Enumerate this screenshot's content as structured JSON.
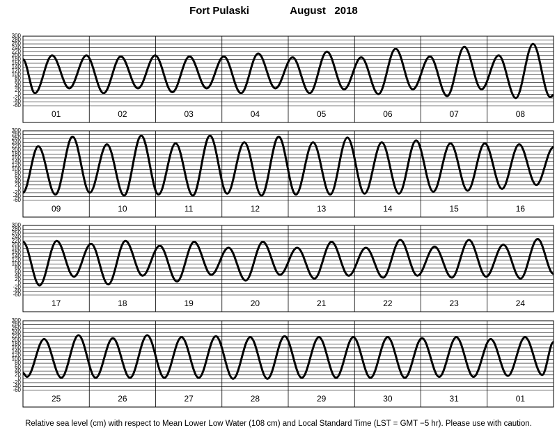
{
  "header": {
    "station": "Fort Pulaski",
    "period": "August   2018"
  },
  "footer": "Relative sea level (cm) with respect to Mean Lower Low Water (108 cm) and Local Standard Time (LST = GMT −5 hr). Please use with caution.",
  "chart_data": [
    {
      "type": "line",
      "xlim": [
        0,
        8
      ],
      "ylim": [
        -60,
        300
      ],
      "grid": true,
      "yticks": [
        300,
        280,
        260,
        240,
        220,
        200,
        180,
        160,
        140,
        120,
        100,
        80,
        60,
        40,
        20,
        0,
        -20,
        -40,
        -60
      ],
      "xticks": [
        {
          "value": 0.5,
          "label": "01"
        },
        {
          "value": 1.5,
          "label": "02"
        },
        {
          "value": 2.5,
          "label": "03"
        },
        {
          "value": 3.5,
          "label": "04"
        },
        {
          "value": 4.5,
          "label": "05"
        },
        {
          "value": 5.5,
          "label": "06"
        },
        {
          "value": 6.5,
          "label": "07"
        },
        {
          "value": 7.5,
          "label": "08"
        }
      ],
      "x": [
        0,
        0.18,
        0.439,
        0.698,
        0.957,
        1.216,
        1.475,
        1.734,
        1.993,
        2.252,
        2.511,
        2.77,
        3.029,
        3.288,
        3.547,
        3.806,
        4.065,
        4.324,
        4.583,
        4.842,
        5.101,
        5.36,
        5.619,
        5.878,
        6.137,
        6.396,
        6.655,
        6.914,
        7.173,
        7.432,
        7.691,
        7.95,
        8
      ],
      "series": [
        {
          "color": "#000000",
          "values": [
            180,
            5,
            200,
            30,
            200,
            5,
            195,
            30,
            200,
            10,
            195,
            30,
            195,
            5,
            210,
            30,
            190,
            5,
            220,
            25,
            190,
            0,
            235,
            25,
            195,
            -10,
            245,
            25,
            200,
            -20,
            260,
            -15,
            -5
          ]
        }
      ]
    },
    {
      "type": "line",
      "xlim": [
        0,
        8
      ],
      "ylim": [
        -60,
        300
      ],
      "grid": true,
      "yticks": [
        300,
        280,
        260,
        240,
        220,
        200,
        180,
        160,
        140,
        120,
        100,
        80,
        60,
        40,
        20,
        0,
        -20,
        -40,
        -60
      ],
      "xticks": [
        {
          "value": 0.5,
          "label": "09"
        },
        {
          "value": 1.5,
          "label": "10"
        },
        {
          "value": 2.5,
          "label": "11"
        },
        {
          "value": 3.5,
          "label": "12"
        },
        {
          "value": 4.5,
          "label": "13"
        },
        {
          "value": 5.5,
          "label": "14"
        },
        {
          "value": 6.5,
          "label": "15"
        },
        {
          "value": 7.5,
          "label": "16"
        }
      ],
      "x": [
        0,
        0.23,
        0.489,
        0.748,
        1.007,
        1.266,
        1.525,
        1.784,
        2.043,
        2.302,
        2.561,
        2.82,
        3.079,
        3.338,
        3.597,
        3.856,
        4.115,
        4.374,
        4.633,
        4.892,
        5.151,
        5.41,
        5.669,
        5.928,
        6.187,
        6.446,
        6.705,
        6.964,
        7.223,
        7.482,
        7.741,
        8
      ],
      "series": [
        {
          "color": "#000000",
          "values": [
            -20,
            220,
            -30,
            270,
            -20,
            230,
            -35,
            275,
            -30,
            235,
            -35,
            275,
            -25,
            240,
            -35,
            270,
            -30,
            240,
            -30,
            265,
            -25,
            240,
            -25,
            250,
            -15,
            235,
            -10,
            235,
            0,
            230,
            20,
            215
          ]
        }
      ]
    },
    {
      "type": "line",
      "xlim": [
        0,
        8
      ],
      "ylim": [
        -60,
        300
      ],
      "grid": true,
      "yticks": [
        300,
        280,
        260,
        240,
        220,
        200,
        180,
        160,
        140,
        120,
        100,
        80,
        60,
        40,
        20,
        0,
        -20,
        -40,
        -60
      ],
      "xticks": [
        {
          "value": 0.5,
          "label": "17"
        },
        {
          "value": 1.5,
          "label": "18"
        },
        {
          "value": 2.5,
          "label": "19"
        },
        {
          "value": 3.5,
          "label": "20"
        },
        {
          "value": 4.5,
          "label": "21"
        },
        {
          "value": 5.5,
          "label": "22"
        },
        {
          "value": 6.5,
          "label": "23"
        },
        {
          "value": 7.5,
          "label": "24"
        }
      ],
      "x": [
        0,
        0.25,
        0.509,
        0.768,
        1.027,
        1.286,
        1.545,
        1.804,
        2.063,
        2.322,
        2.581,
        2.84,
        3.099,
        3.358,
        3.617,
        3.876,
        4.135,
        4.394,
        4.653,
        4.912,
        5.171,
        5.43,
        5.689,
        5.948,
        6.207,
        6.466,
        6.725,
        6.984,
        7.243,
        7.502,
        7.761,
        8
      ],
      "series": [
        {
          "color": "#000000",
          "values": [
            215,
            -10,
            220,
            35,
            205,
            -5,
            220,
            40,
            195,
            10,
            215,
            45,
            185,
            15,
            215,
            45,
            185,
            25,
            215,
            40,
            185,
            30,
            225,
            40,
            190,
            30,
            225,
            35,
            200,
            25,
            230,
            50
          ]
        }
      ]
    },
    {
      "type": "line",
      "xlim": [
        0,
        8
      ],
      "ylim": [
        -60,
        300
      ],
      "grid": true,
      "yticks": [
        300,
        280,
        260,
        240,
        220,
        200,
        180,
        160,
        140,
        120,
        100,
        80,
        60,
        40,
        20,
        0,
        -20,
        -40,
        -60
      ],
      "xticks": [
        {
          "value": 0.5,
          "label": "25"
        },
        {
          "value": 1.5,
          "label": "26"
        },
        {
          "value": 2.5,
          "label": "27"
        },
        {
          "value": 3.5,
          "label": "28"
        },
        {
          "value": 4.5,
          "label": "29"
        },
        {
          "value": 5.5,
          "label": "30"
        },
        {
          "value": 6.5,
          "label": "31"
        },
        {
          "value": 7.5,
          "label": "01"
        }
      ],
      "x": [
        0,
        0.06,
        0.319,
        0.578,
        0.837,
        1.096,
        1.355,
        1.614,
        1.873,
        2.132,
        2.391,
        2.65,
        2.909,
        3.168,
        3.427,
        3.686,
        3.945,
        4.204,
        4.463,
        4.722,
        4.981,
        5.24,
        5.499,
        5.758,
        6.017,
        6.276,
        6.535,
        6.794,
        7.053,
        7.312,
        7.571,
        7.83,
        8
      ],
      "series": [
        {
          "color": "#000000",
          "values": [
            30,
            10,
            205,
            5,
            225,
            5,
            210,
            5,
            225,
            5,
            215,
            5,
            220,
            0,
            215,
            0,
            220,
            5,
            215,
            5,
            215,
            5,
            215,
            5,
            210,
            10,
            215,
            10,
            205,
            15,
            215,
            20,
            190
          ]
        }
      ]
    }
  ]
}
